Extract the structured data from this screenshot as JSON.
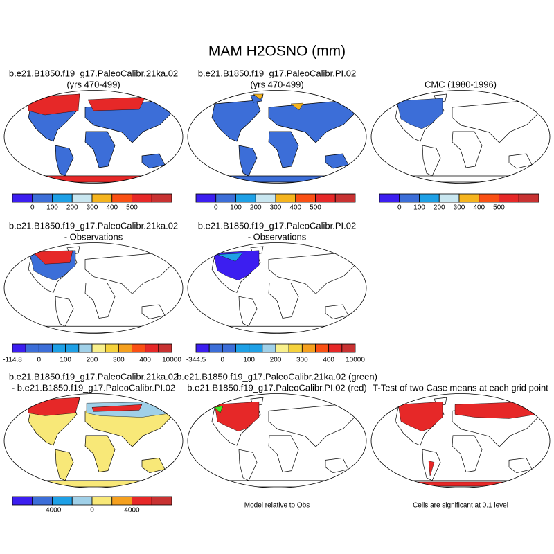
{
  "title": "MAM H2OSNO (mm)",
  "panels": [
    {
      "title": [
        "b.e21.B1850.f19_g17.PaleoCalibr.21ka.02",
        "(yrs 470-499)"
      ],
      "colorbar": {
        "colors": [
          "#3c1ef0",
          "#3c6ed8",
          "#1ea0e6",
          "#c8e6f0",
          "#f5b41e",
          "#fa5014",
          "#e62828",
          "#c83232"
        ],
        "labels": [
          "0",
          "100",
          "200",
          "300",
          "400",
          "500"
        ]
      }
    },
    {
      "title": [
        "b.e21.B1850.f19_g17.PaleoCalibr.PI.02",
        "(yrs 470-499)"
      ],
      "colorbar": {
        "colors": [
          "#3c1ef0",
          "#3c6ed8",
          "#1ea0e6",
          "#c8e6f0",
          "#f5b41e",
          "#fa5014",
          "#e62828",
          "#c83232"
        ],
        "labels": [
          "0",
          "100",
          "200",
          "300",
          "400",
          "500"
        ]
      }
    },
    {
      "title": [
        "CMC (1980-1996)"
      ],
      "colorbar": {
        "colors": [
          "#3c1ef0",
          "#3c6ed8",
          "#1ea0e6",
          "#c8e6f0",
          "#f5b41e",
          "#fa5014",
          "#e62828",
          "#c83232"
        ],
        "labels": [
          "0",
          "100",
          "200",
          "300",
          "400",
          "500"
        ]
      }
    },
    {
      "title": [
        "b.e21.B1850.f19_g17.PaleoCalibr.21ka.02",
        "- Observations"
      ],
      "colorbar": {
        "colors": [
          "#3c1ef0",
          "#3c6ed8",
          "#3c6ed8",
          "#1ea0e6",
          "#1ea0e6",
          "#a0d0e8",
          "#f8f08c",
          "#f5d23c",
          "#f5a01e",
          "#fa5014",
          "#e62828",
          "#c83232"
        ],
        "labels": [
          "-114.8",
          "0",
          "100",
          "200",
          "300",
          "400",
          "10000"
        ]
      }
    },
    {
      "title": [
        "b.e21.B1850.f19_g17.PaleoCalibr.PI.02",
        "- Observations"
      ],
      "colorbar": {
        "colors": [
          "#3c1ef0",
          "#3c6ed8",
          "#3c6ed8",
          "#1ea0e6",
          "#1ea0e6",
          "#a0d0e8",
          "#f8f08c",
          "#f5d23c",
          "#f5a01e",
          "#fa5014",
          "#e62828",
          "#c83232"
        ],
        "labels": [
          "-344.5",
          "0",
          "100",
          "200",
          "300",
          "400",
          "10000"
        ]
      }
    },
    {
      "title": [
        "b.e21.B1850.f19_g17.PaleoCalibr.21ka.02",
        "- b.e21.B1850.f19_g17.PaleoCalibr.PI.02"
      ],
      "colorbar": {
        "colors": [
          "#3c1ef0",
          "#3c6ed8",
          "#1ea0e6",
          "#a0d0e8",
          "#f8e878",
          "#f5a01e",
          "#e62828",
          "#c83232"
        ],
        "labels": [
          "-4000",
          "0",
          "4000"
        ]
      }
    },
    {
      "title": [
        "b.e21.B1850.f19_g17.PaleoCalibr.21ka.02 (green)",
        "b.e21.B1850.f19_g17.PaleoCalibr.PI.02 (red)"
      ],
      "caption": "Model relative to Obs"
    },
    {
      "title": [
        "T-Test of two Case means at each grid point"
      ],
      "caption": "Cells are significant at 0.1 level"
    }
  ]
}
